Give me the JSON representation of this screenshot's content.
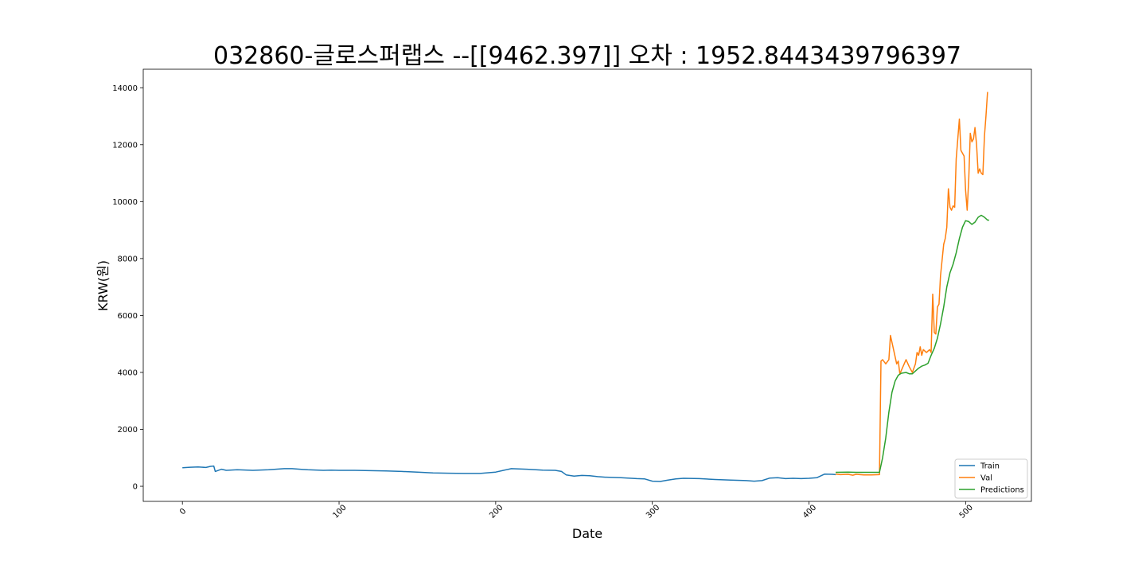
{
  "chart_data": {
    "type": "line",
    "title": "032860-글로스퍼랩스 --[[9462.397]] 오차 : 1952.8443439796397",
    "xlabel": "Date",
    "ylabel": "KRW(원)",
    "xlim": [
      -25,
      542
    ],
    "ylim": [
      -530,
      14650
    ],
    "xticks": [
      0,
      100,
      200,
      300,
      400,
      500
    ],
    "yticks": [
      0,
      2000,
      4000,
      6000,
      8000,
      10000,
      12000,
      14000
    ],
    "grid": false,
    "legend_position": "lower-right",
    "series": [
      {
        "name": "Train",
        "color": "#1f77b4",
        "points": [
          [
            0,
            650
          ],
          [
            5,
            670
          ],
          [
            10,
            680
          ],
          [
            15,
            660
          ],
          [
            18,
            700
          ],
          [
            20,
            710
          ],
          [
            21,
            520
          ],
          [
            25,
            600
          ],
          [
            28,
            560
          ],
          [
            35,
            580
          ],
          [
            45,
            560
          ],
          [
            55,
            580
          ],
          [
            65,
            620
          ],
          [
            70,
            620
          ],
          [
            80,
            580
          ],
          [
            90,
            560
          ],
          [
            95,
            570
          ],
          [
            100,
            560
          ],
          [
            110,
            560
          ],
          [
            120,
            550
          ],
          [
            130,
            540
          ],
          [
            140,
            520
          ],
          [
            150,
            500
          ],
          [
            160,
            470
          ],
          [
            170,
            460
          ],
          [
            180,
            450
          ],
          [
            190,
            450
          ],
          [
            200,
            500
          ],
          [
            205,
            560
          ],
          [
            210,
            620
          ],
          [
            220,
            600
          ],
          [
            230,
            570
          ],
          [
            238,
            560
          ],
          [
            242,
            520
          ],
          [
            245,
            400
          ],
          [
            250,
            360
          ],
          [
            255,
            380
          ],
          [
            260,
            370
          ],
          [
            265,
            340
          ],
          [
            270,
            320
          ],
          [
            280,
            300
          ],
          [
            290,
            270
          ],
          [
            295,
            260
          ],
          [
            300,
            180
          ],
          [
            305,
            170
          ],
          [
            310,
            220
          ],
          [
            315,
            260
          ],
          [
            320,
            280
          ],
          [
            330,
            270
          ],
          [
            340,
            240
          ],
          [
            350,
            220
          ],
          [
            360,
            200
          ],
          [
            365,
            180
          ],
          [
            370,
            200
          ],
          [
            375,
            290
          ],
          [
            380,
            300
          ],
          [
            385,
            270
          ],
          [
            390,
            280
          ],
          [
            395,
            270
          ],
          [
            400,
            280
          ],
          [
            405,
            300
          ],
          [
            410,
            430
          ],
          [
            415,
            420
          ],
          [
            417,
            410
          ]
        ]
      },
      {
        "name": "Val",
        "color": "#ff7f0e",
        "points": [
          [
            417,
            430
          ],
          [
            420,
            410
          ],
          [
            425,
            420
          ],
          [
            428,
            390
          ],
          [
            430,
            420
          ],
          [
            435,
            400
          ],
          [
            440,
            400
          ],
          [
            445,
            410
          ],
          [
            446,
            4400
          ],
          [
            447,
            4450
          ],
          [
            449,
            4300
          ],
          [
            451,
            4450
          ],
          [
            452,
            5300
          ],
          [
            454,
            4800
          ],
          [
            456,
            4300
          ],
          [
            457,
            4400
          ],
          [
            458,
            3950
          ],
          [
            460,
            4200
          ],
          [
            462,
            4450
          ],
          [
            464,
            4200
          ],
          [
            466,
            4000
          ],
          [
            468,
            4300
          ],
          [
            469,
            4700
          ],
          [
            470,
            4600
          ],
          [
            471,
            4900
          ],
          [
            472,
            4600
          ],
          [
            473,
            4800
          ],
          [
            475,
            4700
          ],
          [
            477,
            4800
          ],
          [
            478,
            4700
          ],
          [
            479,
            6750
          ],
          [
            480,
            5400
          ],
          [
            481,
            5350
          ],
          [
            482,
            6300
          ],
          [
            483,
            6400
          ],
          [
            484,
            7400
          ],
          [
            486,
            8500
          ],
          [
            487,
            8700
          ],
          [
            488,
            9100
          ],
          [
            489,
            10450
          ],
          [
            490,
            9800
          ],
          [
            491,
            9700
          ],
          [
            492,
            9850
          ],
          [
            493,
            9800
          ],
          [
            494,
            11500
          ],
          [
            495,
            12200
          ],
          [
            496,
            12900
          ],
          [
            497,
            11800
          ],
          [
            498,
            11700
          ],
          [
            499,
            11600
          ],
          [
            500,
            10400
          ],
          [
            501,
            9700
          ],
          [
            502,
            10800
          ],
          [
            503,
            12400
          ],
          [
            504,
            12100
          ],
          [
            505,
            12200
          ],
          [
            506,
            12600
          ],
          [
            507,
            12000
          ],
          [
            508,
            11000
          ],
          [
            509,
            11150
          ],
          [
            510,
            11000
          ],
          [
            511,
            10950
          ],
          [
            512,
            12300
          ],
          [
            513,
            13000
          ],
          [
            514,
            13850
          ]
        ]
      },
      {
        "name": "Predictions",
        "color": "#2ca02c",
        "points": [
          [
            417,
            490
          ],
          [
            425,
            495
          ],
          [
            430,
            490
          ],
          [
            440,
            490
          ],
          [
            445,
            490
          ],
          [
            447,
            1000
          ],
          [
            449,
            1700
          ],
          [
            451,
            2600
          ],
          [
            453,
            3300
          ],
          [
            455,
            3700
          ],
          [
            457,
            3900
          ],
          [
            459,
            3970
          ],
          [
            462,
            4000
          ],
          [
            464,
            3950
          ],
          [
            466,
            3950
          ],
          [
            468,
            4050
          ],
          [
            470,
            4150
          ],
          [
            472,
            4220
          ],
          [
            474,
            4260
          ],
          [
            476,
            4320
          ],
          [
            478,
            4600
          ],
          [
            480,
            4850
          ],
          [
            482,
            5200
          ],
          [
            484,
            5700
          ],
          [
            486,
            6300
          ],
          [
            488,
            7000
          ],
          [
            490,
            7500
          ],
          [
            492,
            7800
          ],
          [
            494,
            8200
          ],
          [
            496,
            8700
          ],
          [
            498,
            9100
          ],
          [
            500,
            9330
          ],
          [
            502,
            9300
          ],
          [
            504,
            9200
          ],
          [
            506,
            9280
          ],
          [
            508,
            9450
          ],
          [
            510,
            9520
          ],
          [
            512,
            9450
          ],
          [
            514,
            9350
          ],
          [
            515,
            9350
          ]
        ]
      }
    ]
  }
}
